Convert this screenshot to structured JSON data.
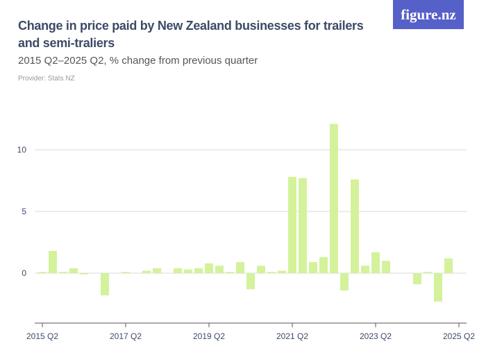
{
  "header": {
    "title": "Change in price paid by New Zealand businesses for trailers and semi-traliers",
    "subtitle": "2015 Q2–2025 Q2, % change from previous quarter",
    "provider": "Provider: Stats NZ",
    "logo": "figure.nz"
  },
  "colors": {
    "bar": "#d4f29b",
    "logo_bg": "#5560c8",
    "text": "#3d4a66"
  },
  "chart_data": {
    "type": "bar",
    "title": "Change in price paid by New Zealand businesses for trailers and semi-traliers",
    "subtitle": "2015 Q2–2025 Q2, % change from previous quarter",
    "categories": [
      "2015 Q2",
      "2015 Q3",
      "2015 Q4",
      "2016 Q1",
      "2016 Q2",
      "2016 Q3",
      "2016 Q4",
      "2017 Q1",
      "2017 Q2",
      "2017 Q3",
      "2017 Q4",
      "2018 Q1",
      "2018 Q2",
      "2018 Q3",
      "2018 Q4",
      "2019 Q1",
      "2019 Q2",
      "2019 Q3",
      "2019 Q4",
      "2020 Q1",
      "2020 Q2",
      "2020 Q3",
      "2020 Q4",
      "2021 Q1",
      "2021 Q2",
      "2021 Q3",
      "2021 Q4",
      "2022 Q1",
      "2022 Q2",
      "2022 Q3",
      "2022 Q4",
      "2023 Q1",
      "2023 Q2",
      "2023 Q3",
      "2023 Q4",
      "2024 Q1",
      "2024 Q2",
      "2024 Q3",
      "2024 Q4",
      "2025 Q1",
      "2025 Q2"
    ],
    "values": [
      0.1,
      1.8,
      0.1,
      0.4,
      -0.1,
      0,
      -1.8,
      0,
      0.1,
      0,
      0.2,
      0.4,
      0,
      0.4,
      0.3,
      0.4,
      0.8,
      0.6,
      0.1,
      0.9,
      -1.3,
      0.6,
      0.1,
      0.2,
      7.8,
      7.7,
      0.9,
      1.3,
      12.1,
      -1.4,
      7.6,
      0.6,
      1.7,
      1.0,
      0,
      0,
      -0.9,
      0.1,
      -2.3,
      1.2,
      0
    ],
    "x_tick_labels": [
      "2015 Q2",
      "2017 Q2",
      "2019 Q2",
      "2021 Q2",
      "2023 Q2",
      "2025 Q2"
    ],
    "y_ticks": [
      0,
      5,
      10
    ],
    "ylim": [
      -4,
      13
    ],
    "grid": true
  }
}
